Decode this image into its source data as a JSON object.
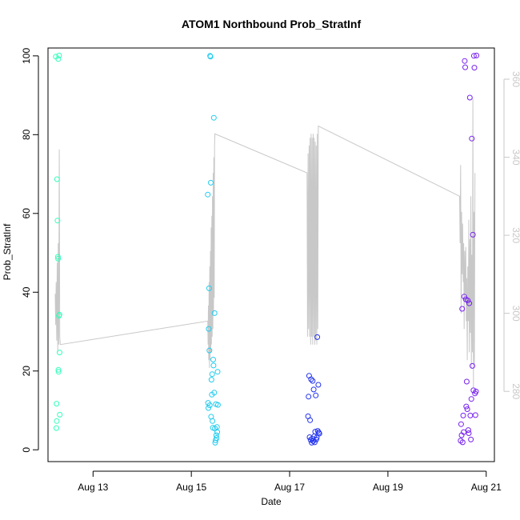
{
  "chart_data": {
    "type": "scatter",
    "title": "ATOM1 Northbound Prob_StratInf",
    "xlabel": "Date",
    "ylabel": "Prob_StratInf",
    "xlim": [
      "2023-08-12 02:00",
      "2023-08-21 04:00"
    ],
    "ylim": [
      -3,
      102
    ],
    "x_ticks": [
      {
        "date": "2023-08-13",
        "label": "Aug 13"
      },
      {
        "date": "2023-08-15",
        "label": "Aug 15"
      },
      {
        "date": "2023-08-17",
        "label": "Aug 17"
      },
      {
        "date": "2023-08-19",
        "label": "Aug 19"
      },
      {
        "date": "2023-08-21",
        "label": "Aug 21"
      }
    ],
    "y_ticks": [
      0,
      20,
      40,
      60,
      80,
      100
    ],
    "right_axis": {
      "ylim": [
        262,
        368
      ],
      "ticks": [
        280,
        300,
        320,
        340,
        360
      ],
      "color": "#c8c8c8"
    },
    "colors": {
      "group1": "#33ffbb",
      "group2": "#22ccee",
      "group3": "#2233ee",
      "group4": "#7722ee"
    },
    "series": [
      {
        "color": "#33ffbb",
        "points": [
          {
            "x": "2023-08-12 05:50",
            "y": 99.8
          },
          {
            "x": "2023-08-12 06:05",
            "y": 5.5
          },
          {
            "x": "2023-08-12 06:10",
            "y": 11.7
          },
          {
            "x": "2023-08-12 06:15",
            "y": 7.3
          },
          {
            "x": "2023-08-12 06:25",
            "y": 68.7
          },
          {
            "x": "2023-08-12 06:40",
            "y": 58.2
          },
          {
            "x": "2023-08-12 06:50",
            "y": 49.0
          },
          {
            "x": "2023-08-12 06:55",
            "y": 48.5
          },
          {
            "x": "2023-08-12 07:00",
            "y": 99.2
          },
          {
            "x": "2023-08-12 07:05",
            "y": 20.3
          },
          {
            "x": "2023-08-12 07:10",
            "y": 19.8
          },
          {
            "x": "2023-08-12 07:20",
            "y": 34.0
          },
          {
            "x": "2023-08-12 07:25",
            "y": 100.1
          },
          {
            "x": "2023-08-12 07:35",
            "y": 34.3
          },
          {
            "x": "2023-08-12 07:40",
            "y": 24.7
          },
          {
            "x": "2023-08-12 07:45",
            "y": 8.9
          }
        ]
      },
      {
        "color": "#22ccee",
        "points": [
          {
            "x": "2023-08-15 08:00",
            "y": 64.8
          },
          {
            "x": "2023-08-15 08:10",
            "y": 11.9
          },
          {
            "x": "2023-08-15 08:20",
            "y": 10.6
          },
          {
            "x": "2023-08-15 08:30",
            "y": 30.7
          },
          {
            "x": "2023-08-15 08:40",
            "y": 41.0
          },
          {
            "x": "2023-08-15 08:50",
            "y": 25.2
          },
          {
            "x": "2023-08-15 09:00",
            "y": 11.3
          },
          {
            "x": "2023-08-15 09:10",
            "y": 100.0
          },
          {
            "x": "2023-08-15 09:20",
            "y": 99.8
          },
          {
            "x": "2023-08-15 09:30",
            "y": 67.8
          },
          {
            "x": "2023-08-15 09:40",
            "y": 8.4
          },
          {
            "x": "2023-08-15 09:50",
            "y": 17.8
          },
          {
            "x": "2023-08-15 10:00",
            "y": 14.0
          },
          {
            "x": "2023-08-15 10:10",
            "y": 19.2
          },
          {
            "x": "2023-08-15 10:20",
            "y": 7.3
          },
          {
            "x": "2023-08-15 10:30",
            "y": 5.6
          },
          {
            "x": "2023-08-15 10:40",
            "y": 22.9
          },
          {
            "x": "2023-08-15 10:50",
            "y": 21.4
          },
          {
            "x": "2023-08-15 11:00",
            "y": 84.3
          },
          {
            "x": "2023-08-15 11:10",
            "y": 14.5
          },
          {
            "x": "2023-08-15 11:20",
            "y": 34.7
          },
          {
            "x": "2023-08-15 11:30",
            "y": 5.4
          },
          {
            "x": "2023-08-15 11:40",
            "y": 1.8
          },
          {
            "x": "2023-08-15 11:50",
            "y": 2.4
          },
          {
            "x": "2023-08-15 12:00",
            "y": 11.6
          },
          {
            "x": "2023-08-15 12:10",
            "y": 3.7
          },
          {
            "x": "2023-08-15 12:20",
            "y": 3.0
          },
          {
            "x": "2023-08-15 12:30",
            "y": 5.8
          },
          {
            "x": "2023-08-15 12:40",
            "y": 4.5
          },
          {
            "x": "2023-08-15 12:50",
            "y": 19.8
          },
          {
            "x": "2023-08-15 13:00",
            "y": 11.4
          }
        ]
      },
      {
        "color": "#2233ee",
        "points": [
          {
            "x": "2023-08-17 09:00",
            "y": 8.5
          },
          {
            "x": "2023-08-17 09:15",
            "y": 13.5
          },
          {
            "x": "2023-08-17 09:30",
            "y": 18.8
          },
          {
            "x": "2023-08-17 09:45",
            "y": 3.2
          },
          {
            "x": "2023-08-17 10:00",
            "y": 7.5
          },
          {
            "x": "2023-08-17 10:15",
            "y": 2.5
          },
          {
            "x": "2023-08-17 10:30",
            "y": 17.9
          },
          {
            "x": "2023-08-17 10:45",
            "y": 1.8
          },
          {
            "x": "2023-08-17 11:00",
            "y": 2.8
          },
          {
            "x": "2023-08-17 11:15",
            "y": 17.5
          },
          {
            "x": "2023-08-17 11:30",
            "y": 2.2
          },
          {
            "x": "2023-08-17 11:45",
            "y": 15.3
          },
          {
            "x": "2023-08-17 12:00",
            "y": 3.4
          },
          {
            "x": "2023-08-17 12:15",
            "y": 1.9
          },
          {
            "x": "2023-08-17 12:30",
            "y": 4.6
          },
          {
            "x": "2023-08-17 12:45",
            "y": 13.8
          },
          {
            "x": "2023-08-17 13:00",
            "y": 2.6
          },
          {
            "x": "2023-08-17 13:15",
            "y": 3.1
          },
          {
            "x": "2023-08-17 13:30",
            "y": 28.6
          },
          {
            "x": "2023-08-17 13:45",
            "y": 4.8
          },
          {
            "x": "2023-08-17 14:00",
            "y": 16.5
          },
          {
            "x": "2023-08-17 14:15",
            "y": 4.4
          },
          {
            "x": "2023-08-17 14:30",
            "y": 4.1
          }
        ]
      },
      {
        "color": "#7722ee",
        "points": [
          {
            "x": "2023-08-20 11:30",
            "y": 2.3
          },
          {
            "x": "2023-08-20 11:45",
            "y": 6.5
          },
          {
            "x": "2023-08-20 12:00",
            "y": 3.7
          },
          {
            "x": "2023-08-20 12:15",
            "y": 35.8
          },
          {
            "x": "2023-08-20 12:30",
            "y": 1.9
          },
          {
            "x": "2023-08-20 12:45",
            "y": 8.7
          },
          {
            "x": "2023-08-20 13:00",
            "y": 4.5
          },
          {
            "x": "2023-08-20 13:15",
            "y": 38.9
          },
          {
            "x": "2023-08-20 13:30",
            "y": 98.7
          },
          {
            "x": "2023-08-20 13:45",
            "y": 97.1
          },
          {
            "x": "2023-08-20 14:00",
            "y": 38.2
          },
          {
            "x": "2023-08-20 14:15",
            "y": 11.0
          },
          {
            "x": "2023-08-20 14:30",
            "y": 17.3
          },
          {
            "x": "2023-08-20 14:45",
            "y": 10.3
          },
          {
            "x": "2023-08-20 15:00",
            "y": 37.9
          },
          {
            "x": "2023-08-20 15:15",
            "y": 5.0
          },
          {
            "x": "2023-08-20 15:30",
            "y": 4.2
          },
          {
            "x": "2023-08-20 15:45",
            "y": 37.2
          },
          {
            "x": "2023-08-20 16:00",
            "y": 89.4
          },
          {
            "x": "2023-08-20 16:15",
            "y": 8.7
          },
          {
            "x": "2023-08-20 16:30",
            "y": 2.6
          },
          {
            "x": "2023-08-20 16:45",
            "y": 12.9
          },
          {
            "x": "2023-08-20 17:00",
            "y": 79.0
          },
          {
            "x": "2023-08-20 17:15",
            "y": 21.3
          },
          {
            "x": "2023-08-20 17:30",
            "y": 54.6
          },
          {
            "x": "2023-08-20 17:45",
            "y": 15.1
          },
          {
            "x": "2023-08-20 18:00",
            "y": 100.0
          },
          {
            "x": "2023-08-20 18:15",
            "y": 97.0
          },
          {
            "x": "2023-08-20 18:30",
            "y": 14.3
          },
          {
            "x": "2023-08-20 18:45",
            "y": 8.8
          },
          {
            "x": "2023-08-20 19:00",
            "y": 14.8
          },
          {
            "x": "2023-08-20 19:15",
            "y": 100.1
          }
        ]
      }
    ],
    "secondary_line": {
      "color": "#c8c8c8",
      "points": [
        {
          "x": "2023-08-12 05:30",
          "y": 305
        },
        {
          "x": "2023-08-12 05:45",
          "y": 297
        },
        {
          "x": "2023-08-12 06:00",
          "y": 308
        },
        {
          "x": "2023-08-12 06:15",
          "y": 293
        },
        {
          "x": "2023-08-12 06:30",
          "y": 313
        },
        {
          "x": "2023-08-12 06:45",
          "y": 290
        },
        {
          "x": "2023-08-12 07:00",
          "y": 318
        },
        {
          "x": "2023-08-12 07:15",
          "y": 292
        },
        {
          "x": "2023-08-12 07:30",
          "y": 342
        },
        {
          "x": "2023-08-12 07:45",
          "y": 294
        },
        {
          "x": "2023-08-12 08:00",
          "y": 292
        },
        {
          "x": "2023-08-15 08:00",
          "y": 298
        },
        {
          "x": "2023-08-15 08:10",
          "y": 292
        },
        {
          "x": "2023-08-15 08:20",
          "y": 302
        },
        {
          "x": "2023-08-15 08:30",
          "y": 288
        },
        {
          "x": "2023-08-15 08:40",
          "y": 308
        },
        {
          "x": "2023-08-15 08:50",
          "y": 286
        },
        {
          "x": "2023-08-15 09:00",
          "y": 312
        },
        {
          "x": "2023-08-15 09:10",
          "y": 288
        },
        {
          "x": "2023-08-15 09:20",
          "y": 316
        },
        {
          "x": "2023-08-15 09:30",
          "y": 290
        },
        {
          "x": "2023-08-15 09:40",
          "y": 322
        },
        {
          "x": "2023-08-15 09:50",
          "y": 292
        },
        {
          "x": "2023-08-15 10:00",
          "y": 325
        },
        {
          "x": "2023-08-15 10:10",
          "y": 294
        },
        {
          "x": "2023-08-15 10:20",
          "y": 330
        },
        {
          "x": "2023-08-15 10:30",
          "y": 296
        },
        {
          "x": "2023-08-15 10:40",
          "y": 336
        },
        {
          "x": "2023-08-15 10:50",
          "y": 300
        },
        {
          "x": "2023-08-15 11:00",
          "y": 340
        },
        {
          "x": "2023-08-15 11:10",
          "y": 304
        },
        {
          "x": "2023-08-15 11:20",
          "y": 343
        },
        {
          "x": "2023-08-15 11:30",
          "y": 346
        },
        {
          "x": "2023-08-17 08:30",
          "y": 336
        },
        {
          "x": "2023-08-17 08:45",
          "y": 294
        },
        {
          "x": "2023-08-17 09:00",
          "y": 341
        },
        {
          "x": "2023-08-17 09:15",
          "y": 296
        },
        {
          "x": "2023-08-17 09:30",
          "y": 343
        },
        {
          "x": "2023-08-17 09:45",
          "y": 294
        },
        {
          "x": "2023-08-17 10:00",
          "y": 345
        },
        {
          "x": "2023-08-17 10:15",
          "y": 292
        },
        {
          "x": "2023-08-17 10:30",
          "y": 346
        },
        {
          "x": "2023-08-17 10:45",
          "y": 294
        },
        {
          "x": "2023-08-17 11:00",
          "y": 345
        },
        {
          "x": "2023-08-17 11:15",
          "y": 292
        },
        {
          "x": "2023-08-17 11:30",
          "y": 346
        },
        {
          "x": "2023-08-17 11:45",
          "y": 294
        },
        {
          "x": "2023-08-17 12:00",
          "y": 345
        },
        {
          "x": "2023-08-17 12:15",
          "y": 292
        },
        {
          "x": "2023-08-17 12:30",
          "y": 344
        },
        {
          "x": "2023-08-17 12:45",
          "y": 293
        },
        {
          "x": "2023-08-17 13:00",
          "y": 343
        },
        {
          "x": "2023-08-17 13:15",
          "y": 292
        },
        {
          "x": "2023-08-17 13:30",
          "y": 346
        },
        {
          "x": "2023-08-17 13:45",
          "y": 296
        },
        {
          "x": "2023-08-17 14:00",
          "y": 348
        },
        {
          "x": "2023-08-20 11:00",
          "y": 330
        },
        {
          "x": "2023-08-20 11:15",
          "y": 318
        },
        {
          "x": "2023-08-20 11:30",
          "y": 338
        },
        {
          "x": "2023-08-20 11:45",
          "y": 300
        },
        {
          "x": "2023-08-20 12:00",
          "y": 326
        },
        {
          "x": "2023-08-20 12:15",
          "y": 310
        },
        {
          "x": "2023-08-20 12:30",
          "y": 323
        },
        {
          "x": "2023-08-20 12:45",
          "y": 308
        },
        {
          "x": "2023-08-20 13:00",
          "y": 318
        },
        {
          "x": "2023-08-20 13:15",
          "y": 296
        },
        {
          "x": "2023-08-20 13:30",
          "y": 316
        },
        {
          "x": "2023-08-20 13:45",
          "y": 305
        },
        {
          "x": "2023-08-20 14:00",
          "y": 317
        },
        {
          "x": "2023-08-20 14:15",
          "y": 298
        },
        {
          "x": "2023-08-20 14:30",
          "y": 309
        },
        {
          "x": "2023-08-20 14:45",
          "y": 288
        },
        {
          "x": "2023-08-20 15:00",
          "y": 312
        },
        {
          "x": "2023-08-20 15:15",
          "y": 298
        },
        {
          "x": "2023-08-20 15:30",
          "y": 324
        },
        {
          "x": "2023-08-20 15:45",
          "y": 290
        },
        {
          "x": "2023-08-20 16:00",
          "y": 319
        },
        {
          "x": "2023-08-20 16:15",
          "y": 295
        },
        {
          "x": "2023-08-20 16:30",
          "y": 330
        },
        {
          "x": "2023-08-20 16:45",
          "y": 286
        },
        {
          "x": "2023-08-20 17:00",
          "y": 315
        },
        {
          "x": "2023-08-20 17:15",
          "y": 290
        },
        {
          "x": "2023-08-20 17:30",
          "y": 355
        },
        {
          "x": "2023-08-20 17:45",
          "y": 281
        },
        {
          "x": "2023-08-20 18:00",
          "y": 326
        },
        {
          "x": "2023-08-20 18:15",
          "y": 287
        },
        {
          "x": "2023-08-20 18:30",
          "y": 336
        }
      ]
    }
  }
}
